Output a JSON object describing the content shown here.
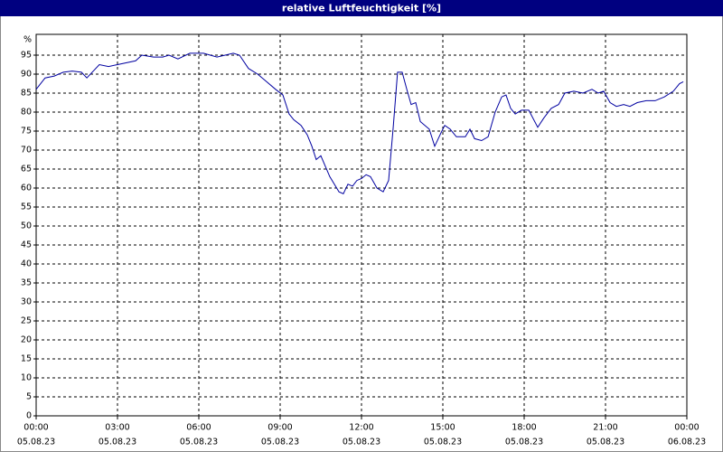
{
  "chart_data": {
    "type": "line",
    "title": "relative Luftfeuchtigkeit [%]",
    "y_label": "%",
    "x": [
      0,
      0.33,
      0.67,
      1,
      1.33,
      1.67,
      1.87,
      2.33,
      2.67,
      3,
      3.67,
      3.9,
      4.33,
      4.67,
      4.9,
      5.23,
      5.67,
      6.17,
      6.67,
      7.27,
      7.5,
      7.83,
      8.17,
      8.5,
      8.83,
      9.1,
      9.33,
      9.5,
      9.77,
      10,
      10.17,
      10.33,
      10.5,
      10.83,
      11.17,
      11.33,
      11.5,
      11.67,
      11.83,
      12,
      12.17,
      12.33,
      12.57,
      12.8,
      13,
      13.17,
      13.33,
      13.5,
      13.67,
      13.83,
      14,
      14.17,
      14.5,
      14.7,
      14.93,
      15.07,
      15.27,
      15.5,
      15.83,
      16,
      16.17,
      16.43,
      16.67,
      16.93,
      17.17,
      17.33,
      17.5,
      17.67,
      17.9,
      18.17,
      18.5,
      18.73,
      19,
      19.27,
      19.5,
      19.83,
      20.17,
      20.5,
      20.73,
      20.93,
      21.17,
      21.4,
      21.67,
      21.9,
      22.17,
      22.5,
      22.83,
      23.17,
      23.5,
      23.73,
      23.87
    ],
    "series": [
      {
        "name": "relative Luftfeuchtigkeit",
        "color": "#0000a0",
        "values": [
          86,
          89,
          89.5,
          90.5,
          90.8,
          90.5,
          89,
          92.5,
          92,
          92.5,
          93.5,
          95,
          94.5,
          94.5,
          95,
          94,
          95.5,
          95.5,
          94.5,
          95.5,
          95,
          91.5,
          90,
          88,
          86,
          84.5,
          79.5,
          78,
          76.5,
          74,
          71,
          67.5,
          68.5,
          63,
          59,
          58.5,
          61,
          60.5,
          62,
          62.5,
          63.5,
          63,
          60,
          59,
          62,
          76,
          90.5,
          90.5,
          86,
          82,
          82.5,
          77.5,
          75.5,
          71,
          74.5,
          76.5,
          75.5,
          73.5,
          73.5,
          75.5,
          73,
          72.5,
          73.5,
          80,
          84,
          84.5,
          81,
          79.5,
          80.5,
          80.5,
          76,
          78.5,
          81,
          82,
          85,
          85.5,
          85,
          86,
          85,
          85.5,
          82.5,
          81.5,
          82,
          81.5,
          82.5,
          83,
          83,
          84,
          85.5,
          87.5,
          88
        ]
      }
    ],
    "xlim": [
      0,
      24
    ],
    "xticks": [
      {
        "value": 0,
        "label": "00:00"
      },
      {
        "value": 3,
        "label": "03:00"
      },
      {
        "value": 6,
        "label": "06:00"
      },
      {
        "value": 9,
        "label": "09:00"
      },
      {
        "value": 12,
        "label": "12:00"
      },
      {
        "value": 15,
        "label": "15:00"
      },
      {
        "value": 18,
        "label": "18:00"
      },
      {
        "value": 21,
        "label": "21:00"
      },
      {
        "value": 24,
        "label": "00:00"
      }
    ],
    "xtick_dates": [
      "05.08.23",
      "05.08.23",
      "05.08.23",
      "05.08.23",
      "05.08.23",
      "05.08.23",
      "05.08.23",
      "05.08.23",
      "06.08.23"
    ],
    "ylim": [
      0,
      100
    ],
    "yticks": [
      0,
      5,
      10,
      15,
      20,
      25,
      30,
      35,
      40,
      45,
      50,
      55,
      60,
      65,
      70,
      75,
      80,
      85,
      90,
      95
    ],
    "grid": true
  }
}
